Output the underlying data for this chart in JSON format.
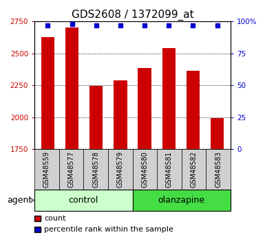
{
  "title": "GDS2608 / 1372099_at",
  "samples": [
    "GSM48559",
    "GSM48577",
    "GSM48578",
    "GSM48579",
    "GSM48580",
    "GSM48581",
    "GSM48582",
    "GSM48583"
  ],
  "counts": [
    2625,
    2700,
    2245,
    2290,
    2385,
    2540,
    2365,
    1995
  ],
  "percentiles": [
    97,
    98,
    97,
    97,
    97,
    97,
    97,
    97
  ],
  "ylim_left": [
    1750,
    2750
  ],
  "ylim_right": [
    0,
    100
  ],
  "yticks_left": [
    1750,
    2000,
    2250,
    2500,
    2750
  ],
  "yticks_right": [
    0,
    25,
    50,
    75,
    100
  ],
  "ytick_labels_right": [
    "0",
    "25",
    "50",
    "75",
    "100%"
  ],
  "bar_color": "#cc0000",
  "dot_color": "#0000cc",
  "sample_box_color": "#d0d0d0",
  "groups": [
    {
      "label": "control",
      "indices": [
        0,
        1,
        2,
        3
      ],
      "color": "#ccffcc"
    },
    {
      "label": "olanzapine",
      "indices": [
        4,
        5,
        6,
        7
      ],
      "color": "#44dd44"
    }
  ],
  "agent_label": "agent",
  "legend_count_label": "count",
  "legend_percentile_label": "percentile rank within the sample",
  "bar_width": 0.55,
  "title_fontsize": 11,
  "tick_fontsize": 7.5,
  "sample_fontsize": 7,
  "group_fontsize": 9,
  "legend_fontsize": 8
}
